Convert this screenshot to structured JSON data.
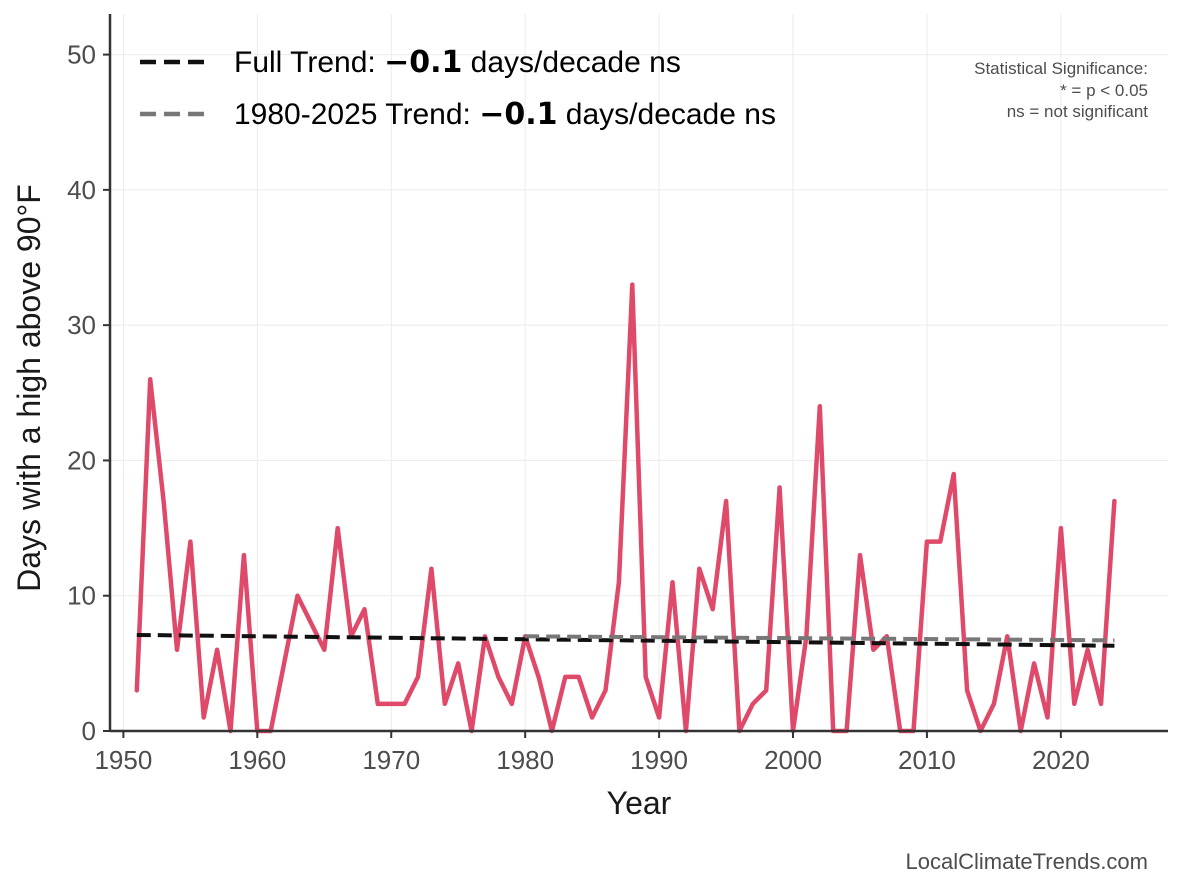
{
  "chart_data": {
    "type": "line",
    "xlabel": "Year",
    "ylabel": "Days with a high above 90°F",
    "xlim": [
      1949,
      2028
    ],
    "ylim": [
      0,
      53
    ],
    "x_ticks": [
      1950,
      1960,
      1970,
      1980,
      1990,
      2000,
      2010,
      2020
    ],
    "y_ticks": [
      0,
      10,
      20,
      30,
      40,
      50
    ],
    "grid": true,
    "legend_position": "top-left",
    "series": [
      {
        "color": "#e04a6a",
        "x": [
          1951,
          1952,
          1953,
          1954,
          1955,
          1956,
          1957,
          1958,
          1959,
          1960,
          1961,
          1962,
          1963,
          1964,
          1965,
          1966,
          1967,
          1968,
          1969,
          1970,
          1971,
          1972,
          1973,
          1974,
          1975,
          1976,
          1977,
          1978,
          1979,
          1980,
          1981,
          1982,
          1983,
          1984,
          1985,
          1986,
          1987,
          1988,
          1989,
          1990,
          1991,
          1992,
          1993,
          1994,
          1995,
          1996,
          1997,
          1998,
          1999,
          2000,
          2001,
          2002,
          2003,
          2004,
          2005,
          2006,
          2007,
          2008,
          2009,
          2010,
          2011,
          2012,
          2013,
          2014,
          2015,
          2016,
          2017,
          2018,
          2019,
          2020,
          2021,
          2022,
          2023,
          2024
        ],
        "values": [
          3,
          26,
          17,
          6,
          14,
          1,
          6,
          0,
          13,
          0,
          0,
          5,
          10,
          8,
          6,
          15,
          7,
          9,
          2,
          2,
          2,
          4,
          12,
          2,
          5,
          0,
          7,
          4,
          2,
          7,
          4,
          0,
          4,
          4,
          1,
          3,
          11,
          33,
          4,
          1,
          11,
          0,
          12,
          9,
          17,
          0,
          2,
          3,
          18,
          0,
          7,
          24,
          0,
          0,
          13,
          6,
          7,
          0,
          0,
          14,
          14,
          19,
          3,
          0,
          2,
          7,
          0,
          5,
          1,
          15,
          2,
          6,
          2,
          17
        ]
      }
    ],
    "trends": [
      {
        "label_prefix": "Full Trend: ",
        "label_value": "−0.1",
        "label_suffix": " days/decade ns",
        "color": "#111111",
        "x_start": 1951,
        "y_start": 7.1,
        "x_end": 2024,
        "y_end": 6.3
      },
      {
        "label_prefix": "1980-2025 Trend: ",
        "label_value": "−0.1",
        "label_suffix": " days/decade ns",
        "color": "#777777",
        "x_start": 1980,
        "y_start": 7.0,
        "x_end": 2024,
        "y_end": 6.7
      }
    ],
    "significance_note": [
      "Statistical Significance:",
      "* = p < 0.05",
      "ns = not significant"
    ],
    "credit": "LocalClimateTrends.com"
  }
}
